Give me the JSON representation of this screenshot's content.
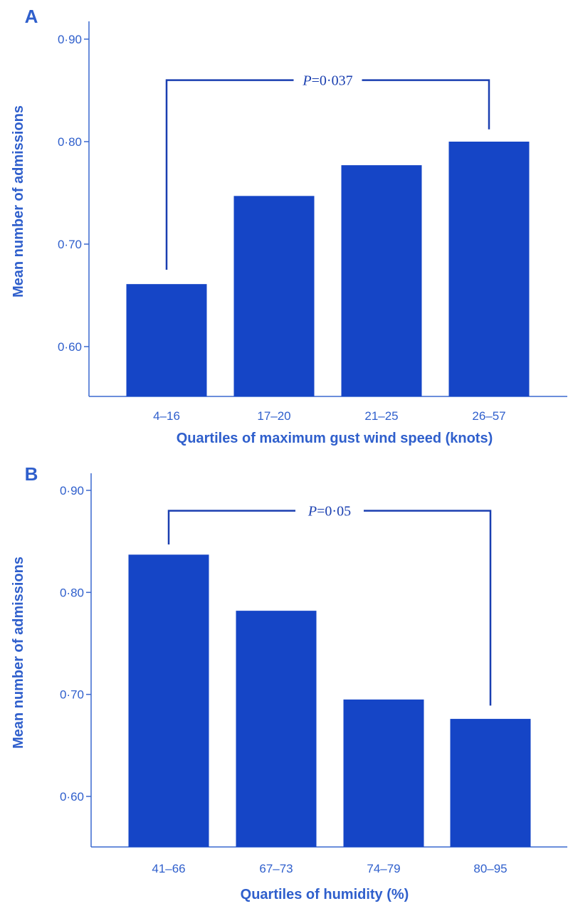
{
  "chart_data": [
    {
      "type": "bar",
      "panel": "A",
      "categories": [
        "4–16",
        "17–20",
        "21–25",
        "26–57"
      ],
      "values": [
        0.661,
        0.747,
        0.777,
        0.8
      ],
      "xlabel": "Quartiles of maximum gust wind speed (knots)",
      "ylabel": "Mean number of admissions",
      "ylim": [
        0.55,
        0.92
      ],
      "yticks": [
        0.6,
        0.7,
        0.8,
        0.9
      ],
      "ytick_labels": [
        "0·60",
        "0·70",
        "0·80",
        "0·90"
      ],
      "annotation": {
        "p_symbol": "P",
        "p_text": "=0·037",
        "from_category": 0,
        "to_category": 3,
        "bracket_level": 0.86,
        "left_end": 0.675,
        "right_end": 0.812
      },
      "grid": false,
      "legend": "none"
    },
    {
      "type": "bar",
      "panel": "B",
      "categories": [
        "41–66",
        "67–73",
        "74–79",
        "80–95"
      ],
      "values": [
        0.837,
        0.782,
        0.695,
        0.676
      ],
      "xlabel": "Quartiles of humidity (%)",
      "ylabel": "Mean number of admissions",
      "ylim": [
        0.55,
        0.92
      ],
      "yticks": [
        0.6,
        0.7,
        0.8,
        0.9
      ],
      "ytick_labels": [
        "0·60",
        "0·70",
        "0·80",
        "0·90"
      ],
      "annotation": {
        "p_symbol": "P",
        "p_text": "=0·05",
        "from_category": 0,
        "to_category": 3,
        "bracket_level": 0.88,
        "left_end": 0.847,
        "right_end": 0.689
      },
      "grid": false,
      "legend": "none"
    }
  ],
  "colors": {
    "bar": "#1545c6",
    "axis": "#3a68cf",
    "text": "#2f5fcc",
    "annotation": "#1a3fb0"
  }
}
